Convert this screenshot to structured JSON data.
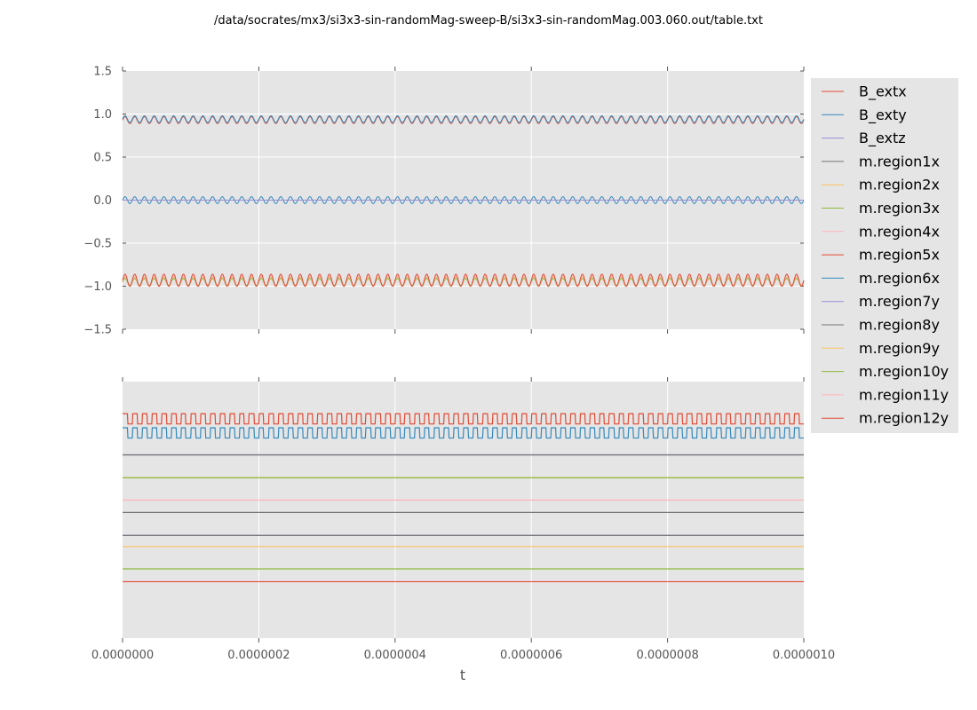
{
  "chart_data": {
    "type": "line",
    "title": "/data/socrates/mx3/si3x3-sin-randomMag-sweep-B/si3x3-sin-randomMag.003.060.out/table.txt",
    "xlabel": "t",
    "xlim": [
      0,
      1e-06
    ],
    "x_ticks": [
      "0.0000000",
      "0.0000002",
      "0.0000004",
      "0.0000006",
      "0.0000008",
      "0.0000010"
    ],
    "grid": true,
    "legend_position": "right",
    "top_panel": {
      "ylim": [
        -1.5,
        1.5
      ],
      "y_ticks": [
        "1.5",
        "1.0",
        "0.5",
        "0.0",
        "−0.5",
        "−1.0",
        "−1.5"
      ],
      "series": [
        {
          "name": "B_extx",
          "color": "#E24A33",
          "baseline": 0.93,
          "amplitude": 0.04,
          "waveform": "sine",
          "periods": 70
        },
        {
          "name": "B_exty",
          "color": "#348ABD",
          "baseline": 0.0,
          "amplitude": 0.04,
          "waveform": "sine",
          "periods": 70
        },
        {
          "name": "B_extz",
          "color": "#988ED5",
          "baseline": 0.0,
          "amplitude": 0.0,
          "waveform": "flat",
          "periods": 0
        },
        {
          "name": "m.region1x",
          "color": "#777777",
          "baseline": -0.95,
          "amplitude": 0.05,
          "waveform": "sine",
          "periods": 70
        },
        {
          "name": "m.region2x",
          "color": "#FBC15E",
          "baseline": -0.95,
          "amplitude": 0.05,
          "waveform": "sine",
          "periods": 70
        },
        {
          "name": "m.region3x",
          "color": "#8EBA42",
          "baseline": -0.95,
          "amplitude": 0.04,
          "waveform": "sine",
          "periods": 70
        },
        {
          "name": "m.region4x",
          "color": "#FFB5B8",
          "baseline": -0.94,
          "amplitude": 0.06,
          "waveform": "sine",
          "periods": 70
        },
        {
          "name": "m.region5x",
          "color": "#E24A33",
          "baseline": -0.93,
          "amplitude": 0.07,
          "waveform": "sine",
          "periods": 70
        },
        {
          "name": "m.region6x",
          "color": "#348ABD",
          "baseline": 0.94,
          "amplitude": 0.04,
          "waveform": "sine",
          "periods": 70
        }
      ]
    },
    "bottom_panel": {
      "ylim": [
        0,
        1
      ],
      "series": [
        {
          "name": "m.region12y",
          "color": "#E24A33",
          "baseline": 0.855,
          "amplitude": 0.02,
          "waveform": "square",
          "periods": 70
        },
        {
          "name": "m.region6x",
          "color": "#348ABD",
          "baseline": 0.8,
          "amplitude": 0.02,
          "waveform": "square",
          "periods": 70
        },
        {
          "name": "m.region7y",
          "color": "#988ED5",
          "baseline": 0.715,
          "amplitude": 0.0,
          "waveform": "flat",
          "periods": 0
        },
        {
          "name": "m.region8y",
          "color": "#777777",
          "baseline": 0.714,
          "amplitude": 0.0,
          "waveform": "flat",
          "periods": 0
        },
        {
          "name": "m.region9y",
          "color": "#FBC15E",
          "baseline": 0.626,
          "amplitude": 0.0,
          "waveform": "flat",
          "periods": 0
        },
        {
          "name": "m.region10y",
          "color": "#8EBA42",
          "baseline": 0.625,
          "amplitude": 0.0,
          "waveform": "flat",
          "periods": 0
        },
        {
          "name": "m.region11y",
          "color": "#FFB5B8",
          "baseline": 0.538,
          "amplitude": 0.0,
          "waveform": "flat",
          "periods": 0
        },
        {
          "name": "m.region1x",
          "color": "#777777",
          "baseline": 0.49,
          "amplitude": 0.0,
          "waveform": "flat",
          "periods": 0
        },
        {
          "name": "m.region7y",
          "color": "#988ED5",
          "baseline": 0.401,
          "amplitude": 0.0,
          "waveform": "flat",
          "periods": 0
        },
        {
          "name": "m.region8y",
          "color": "#777777",
          "baseline": 0.4,
          "amplitude": 0.0,
          "waveform": "flat",
          "periods": 0
        },
        {
          "name": "m.region9y",
          "color": "#FBC15E",
          "baseline": 0.357,
          "amplitude": 0.0,
          "waveform": "flat",
          "periods": 0
        },
        {
          "name": "m.region10y",
          "color": "#8EBA42",
          "baseline": 0.27,
          "amplitude": 0.0,
          "waveform": "flat",
          "periods": 0
        },
        {
          "name": "m.region12y",
          "color": "#E24A33",
          "baseline": 0.22,
          "amplitude": 0.0,
          "waveform": "flat",
          "periods": 0
        }
      ]
    },
    "legend": [
      {
        "name": "B_extx",
        "color": "#E24A33"
      },
      {
        "name": "B_exty",
        "color": "#348ABD"
      },
      {
        "name": "B_extz",
        "color": "#988ED5"
      },
      {
        "name": "m.region1x",
        "color": "#777777"
      },
      {
        "name": "m.region2x",
        "color": "#FBC15E"
      },
      {
        "name": "m.region3x",
        "color": "#8EBA42"
      },
      {
        "name": "m.region4x",
        "color": "#FFB5B8"
      },
      {
        "name": "m.region5x",
        "color": "#E24A33"
      },
      {
        "name": "m.region6x",
        "color": "#348ABD"
      },
      {
        "name": "m.region7y",
        "color": "#988ED5"
      },
      {
        "name": "m.region8y",
        "color": "#777777"
      },
      {
        "name": "m.region9y",
        "color": "#FBC15E"
      },
      {
        "name": "m.region10y",
        "color": "#8EBA42"
      },
      {
        "name": "m.region11y",
        "color": "#FFB5B8"
      },
      {
        "name": "m.region12y",
        "color": "#E24A33"
      }
    ]
  }
}
